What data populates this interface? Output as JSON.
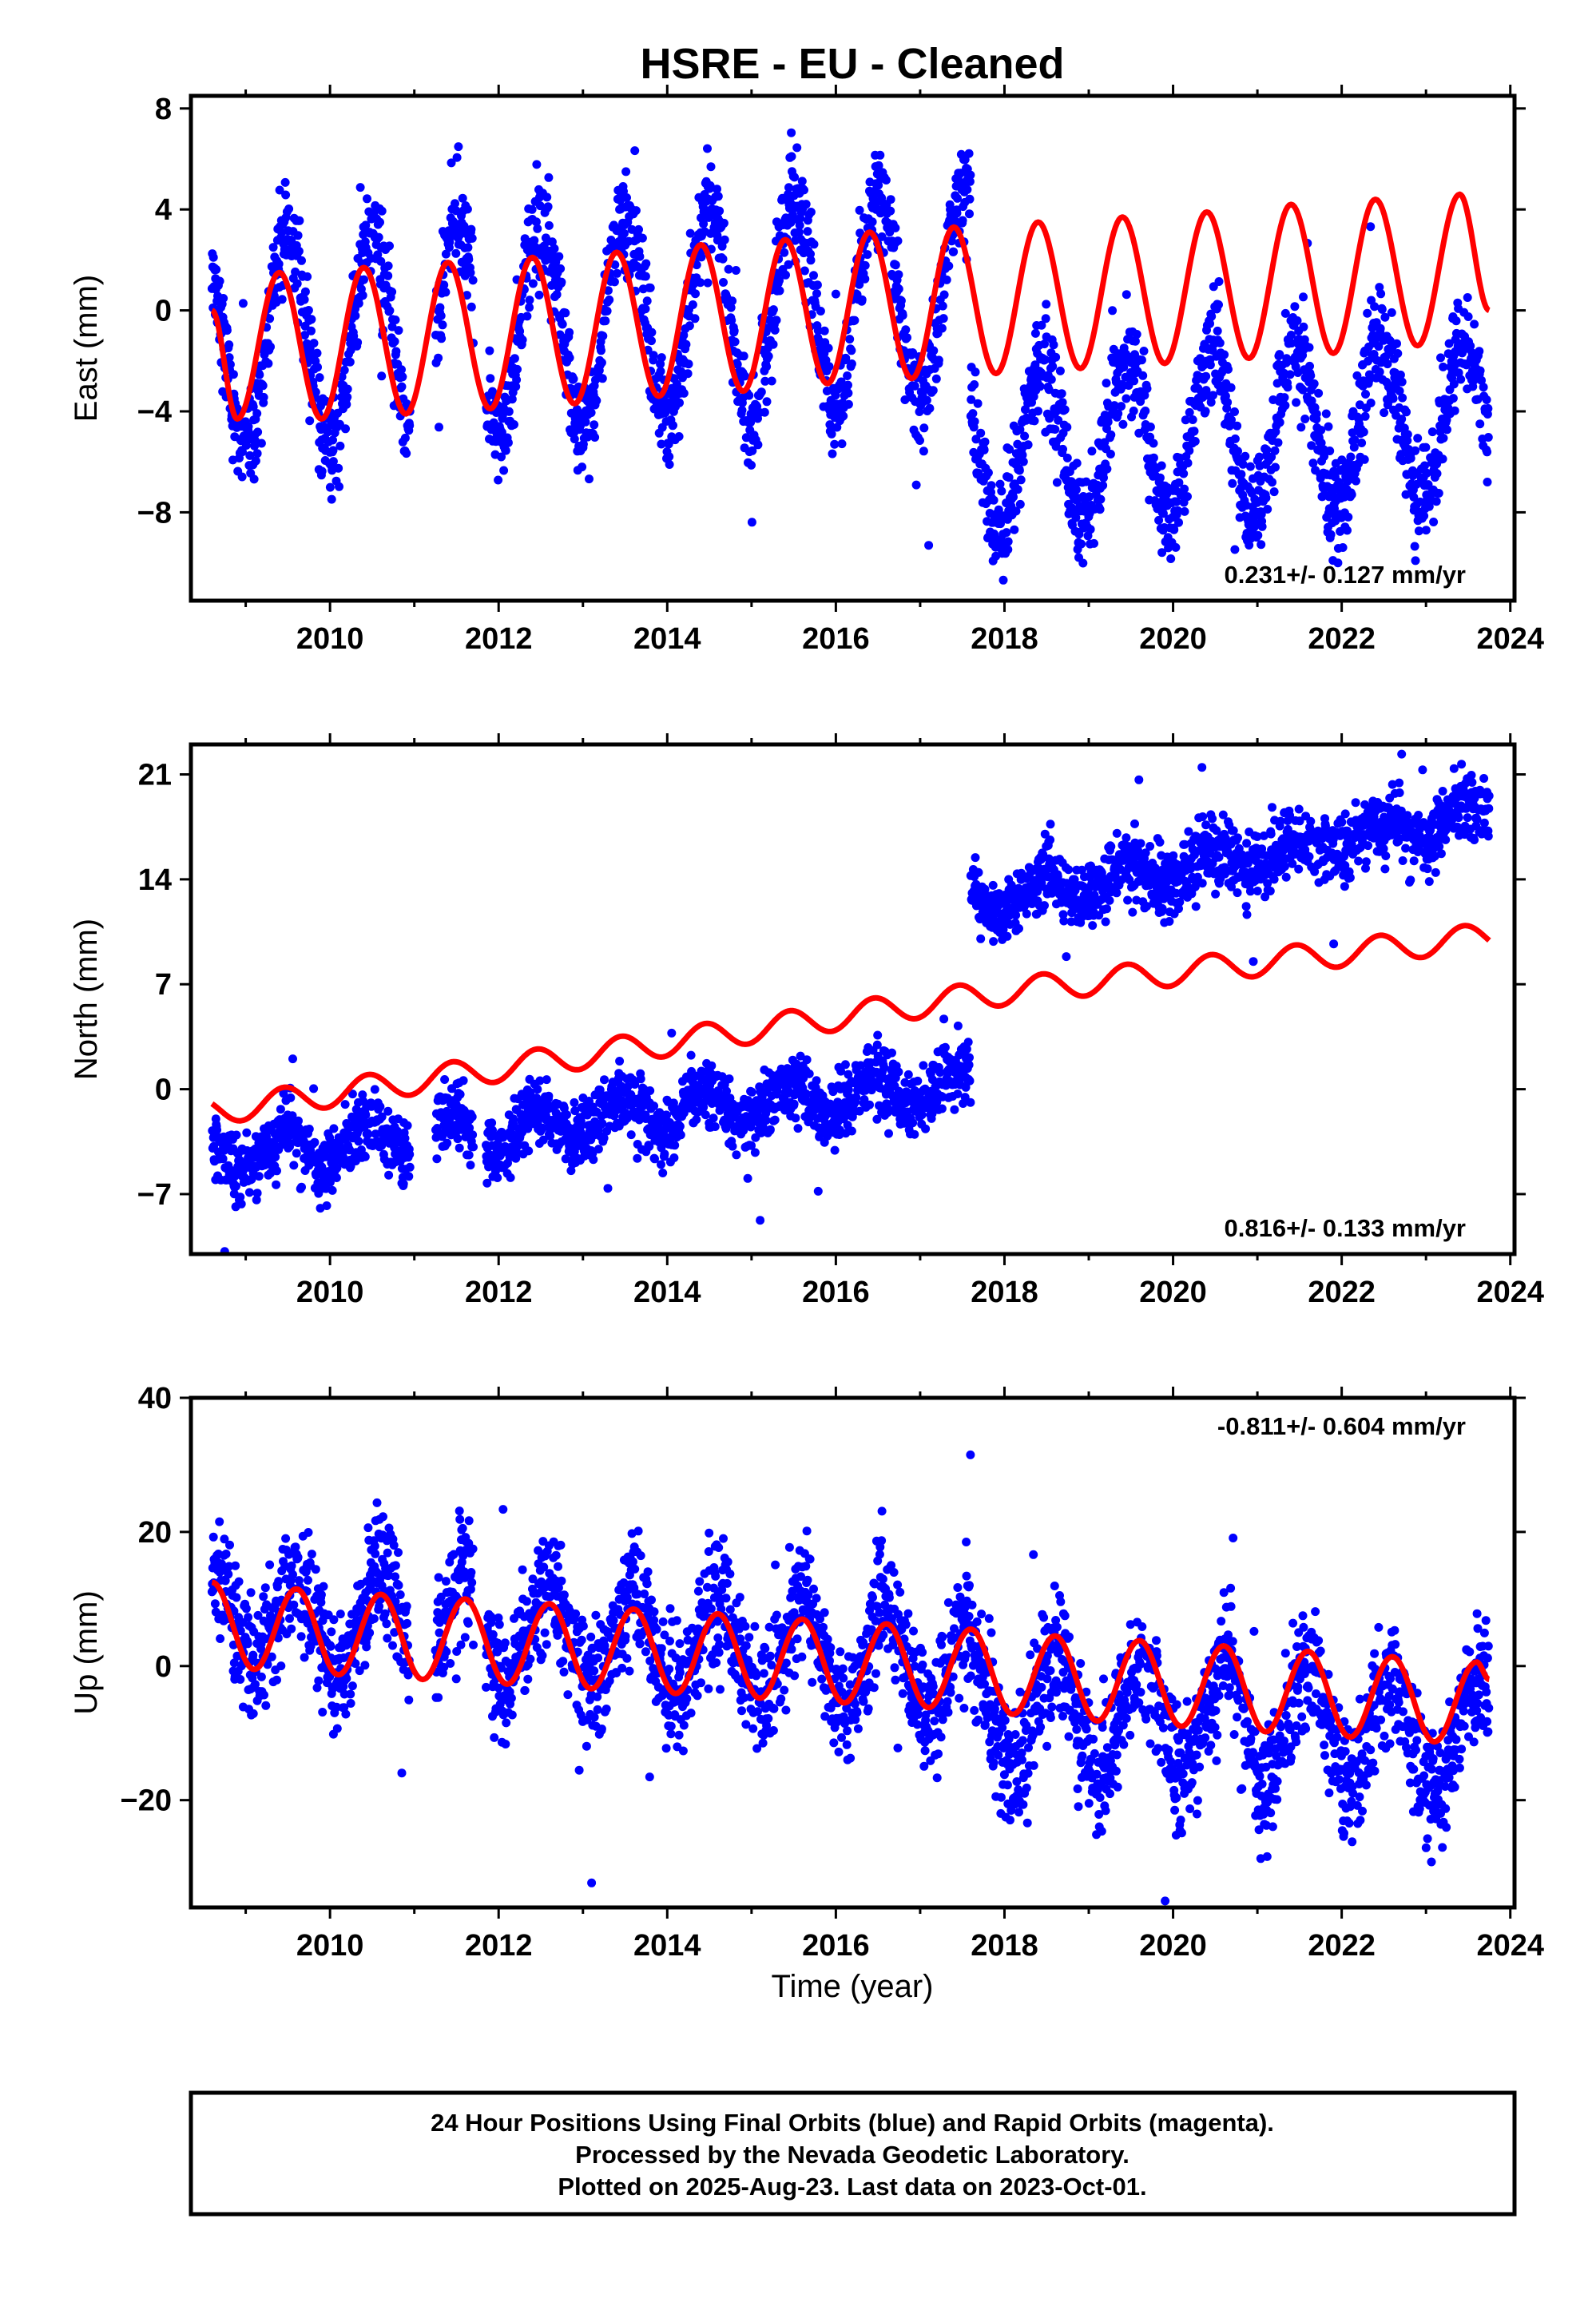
{
  "title": "HSRE  - EU - Cleaned",
  "x_label": "Time (year)",
  "footer": [
    "24 Hour Positions Using Final Orbits (blue) and Rapid Orbits (magenta).",
    "Processed by the Nevada Geodetic Laboratory.",
    "Plotted on 2025-Aug-23. Last data on 2023-Oct-01."
  ],
  "colors": {
    "data": "#0000ff",
    "model": "#ff0000",
    "axis": "#000000"
  },
  "chart_data": [
    {
      "type": "scatter",
      "component": "east",
      "ylabel": "East (mm)",
      "xlim": [
        2008.35,
        2024.05
      ],
      "ylim": [
        -11.5,
        8.5
      ],
      "xticks": [
        2010,
        2012,
        2014,
        2016,
        2018,
        2020,
        2022,
        2024
      ],
      "yticks": [
        -8,
        -4,
        0,
        4,
        8
      ],
      "ytick_labels": [
        "−8",
        "−4",
        "0",
        "4",
        "8"
      ],
      "rate_label": "0.231+/- 0.127 mm/yr",
      "data_time_range": [
        2008.6,
        2023.75
      ],
      "gaps": [
        [
          2010.95,
          2011.25
        ],
        [
          2011.7,
          2011.85
        ]
      ],
      "series": [
        {
          "kind": "observations",
          "segments": [
            {
              "t_start": 2008.6,
              "t_end": 2017.6,
              "offset": -1.5,
              "rate": 0.231,
              "amplitude": 4.2,
              "phase_peak": 0.5
            },
            {
              "t_start": 2017.6,
              "t_end": 2023.75,
              "offset": -5.5,
              "rate": 0.231,
              "amplitude": 3.2,
              "phase_peak": 0.45
            }
          ],
          "scatter_sd": 1.0
        },
        {
          "kind": "model",
          "points": [
            [
              2008.6,
              0.0
            ],
            [
              2008.9,
              -4.3
            ],
            [
              2009.4,
              1.5
            ],
            [
              2009.9,
              -4.3
            ],
            [
              2010.4,
              1.7
            ],
            [
              2010.9,
              -4.1
            ],
            [
              2011.4,
              1.9
            ],
            [
              2011.9,
              -3.9
            ],
            [
              2012.4,
              2.1
            ],
            [
              2012.9,
              -3.7
            ],
            [
              2013.4,
              2.3
            ],
            [
              2013.9,
              -3.4
            ],
            [
              2014.4,
              2.6
            ],
            [
              2014.9,
              -3.2
            ],
            [
              2015.4,
              2.8
            ],
            [
              2015.9,
              -2.9
            ],
            [
              2016.4,
              3.1
            ],
            [
              2016.9,
              -2.7
            ],
            [
              2017.4,
              3.3
            ],
            [
              2017.9,
              -2.5
            ],
            [
              2018.4,
              3.5
            ],
            [
              2018.9,
              -2.3
            ],
            [
              2019.4,
              3.7
            ],
            [
              2019.9,
              -2.1
            ],
            [
              2020.4,
              3.9
            ],
            [
              2020.9,
              -1.9
            ],
            [
              2021.4,
              4.2
            ],
            [
              2021.9,
              -1.7
            ],
            [
              2022.4,
              4.4
            ],
            [
              2022.9,
              -1.4
            ],
            [
              2023.4,
              4.6
            ],
            [
              2023.75,
              0.0
            ]
          ]
        }
      ]
    },
    {
      "type": "scatter",
      "component": "north",
      "ylabel": "North (mm)",
      "xlim": [
        2008.35,
        2024.05
      ],
      "ylim": [
        -11,
        23
      ],
      "xticks": [
        2010,
        2012,
        2014,
        2016,
        2018,
        2020,
        2022,
        2024
      ],
      "yticks": [
        -7,
        0,
        7,
        14,
        21
      ],
      "ytick_labels": [
        "−7",
        "0",
        "7",
        "14",
        "21"
      ],
      "rate_label": "0.816+/- 0.133 mm/yr",
      "data_time_range": [
        2008.6,
        2023.75
      ],
      "gaps": [
        [
          2010.95,
          2011.25
        ],
        [
          2011.7,
          2011.85
        ]
      ],
      "series": [
        {
          "kind": "observations",
          "segments": [
            {
              "t_start": 2008.6,
              "t_end": 2017.6,
              "offset": -4.6,
              "rate": 0.55,
              "amplitude": 1.2,
              "phase_peak": 0.45
            },
            {
              "t_start": 2017.6,
              "t_end": 2023.75,
              "offset": 12.4,
              "rate": 0.95,
              "amplitude": 0.9,
              "phase_peak": 0.45
            }
          ],
          "scatter_sd": 1.1
        },
        {
          "kind": "model",
          "points": [
            [
              2008.6,
              -1.5
            ],
            [
              2018.0,
              6.5
            ],
            [
              2023.75,
              10.2
            ]
          ],
          "annual_amplitude": 0.9
        }
      ]
    },
    {
      "type": "scatter",
      "component": "up",
      "ylabel": "Up (mm)",
      "xlim": [
        2008.35,
        2024.05
      ],
      "ylim": [
        -36,
        40
      ],
      "xticks": [
        2010,
        2012,
        2014,
        2016,
        2018,
        2020,
        2022,
        2024
      ],
      "yticks": [
        -20,
        0,
        20,
        40
      ],
      "ytick_labels": [
        "−20",
        "0",
        "20",
        "40"
      ],
      "rate_label": "-0.811+/- 0.604 mm/yr",
      "data_time_range": [
        2008.6,
        2023.75
      ],
      "gaps": [
        [
          2010.95,
          2011.25
        ],
        [
          2011.7,
          2011.85
        ]
      ],
      "series": [
        {
          "kind": "observations",
          "segments": [
            {
              "t_start": 2008.6,
              "t_end": 2017.6,
              "offset": 7.5,
              "rate": -0.8,
              "amplitude": 7.5,
              "phase_peak": 0.6
            },
            {
              "t_start": 2017.6,
              "t_end": 2023.75,
              "offset": -6.0,
              "rate": -0.8,
              "amplitude": 8.5,
              "phase_peak": 0.6
            }
          ],
          "scatter_sd": 4.5
        },
        {
          "kind": "model",
          "points": [
            [
              2008.6,
              12.5
            ],
            [
              2009.1,
              -0.5
            ],
            [
              2009.6,
              11.5
            ],
            [
              2010.1,
              -1.3
            ],
            [
              2010.6,
              10.7
            ],
            [
              2011.1,
              -2.0
            ],
            [
              2011.6,
              10.0
            ],
            [
              2012.1,
              -2.7
            ],
            [
              2012.6,
              9.3
            ],
            [
              2013.1,
              -3.4
            ],
            [
              2013.6,
              8.5
            ],
            [
              2014.1,
              -4.1
            ],
            [
              2014.6,
              7.8
            ],
            [
              2015.1,
              -4.8
            ],
            [
              2015.6,
              7.0
            ],
            [
              2016.1,
              -5.5
            ],
            [
              2016.6,
              6.3
            ],
            [
              2017.1,
              -6.2
            ],
            [
              2017.6,
              5.5
            ],
            [
              2018.1,
              -7.2
            ],
            [
              2018.6,
              4.5
            ],
            [
              2019.1,
              -8.2
            ],
            [
              2019.6,
              3.8
            ],
            [
              2020.1,
              -9.0
            ],
            [
              2020.6,
              3.0
            ],
            [
              2021.1,
              -9.8
            ],
            [
              2021.6,
              2.2
            ],
            [
              2022.1,
              -10.6
            ],
            [
              2022.6,
              1.4
            ],
            [
              2023.1,
              -11.3
            ],
            [
              2023.6,
              0.6
            ],
            [
              2023.75,
              -2.0
            ]
          ]
        }
      ]
    }
  ]
}
